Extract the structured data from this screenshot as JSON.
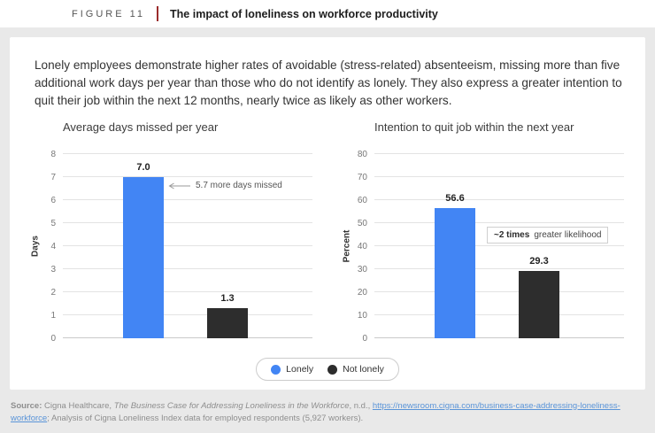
{
  "header": {
    "figure_label": "FIGURE 11",
    "title": "The impact of loneliness on workforce productivity"
  },
  "intro": "Lonely employees demonstrate higher rates of avoidable (stress-related) absenteeism, missing more than five additional work days per year than those who do not identify as lonely. They also express a greater intention to quit their job within the next 12 months, nearly twice as likely as other workers.",
  "legend": [
    {
      "label": "Lonely",
      "color": "#4285f4"
    },
    {
      "label": "Not lonely",
      "color": "#2d2d2d"
    }
  ],
  "chart_data": [
    {
      "type": "bar",
      "title": "Average days missed per year",
      "ylabel": "Days",
      "ylim": [
        0,
        8
      ],
      "yticks": [
        0,
        1,
        2,
        3,
        4,
        5,
        6,
        7,
        8
      ],
      "categories": [
        "Lonely",
        "Not lonely"
      ],
      "values": [
        7.0,
        1.3
      ],
      "value_labels": [
        "7.0",
        "1.3"
      ],
      "bar_colors": [
        "#4285f4",
        "#2d2d2d"
      ],
      "grid": true,
      "legend_position": "bottom-center-shared",
      "annotation": {
        "style": "arrow",
        "bold": "",
        "text": "5.7 more days missed"
      }
    },
    {
      "type": "bar",
      "title": "Intention to quit job within the next year",
      "ylabel": "Percent",
      "ylim": [
        0,
        80
      ],
      "yticks": [
        0,
        10,
        20,
        30,
        40,
        50,
        60,
        70,
        80
      ],
      "categories": [
        "Lonely",
        "Not lonely"
      ],
      "values": [
        56.6,
        29.3
      ],
      "value_labels": [
        "56.6",
        "29.3"
      ],
      "bar_colors": [
        "#4285f4",
        "#2d2d2d"
      ],
      "grid": true,
      "legend_position": "bottom-center-shared",
      "annotation": {
        "style": "box",
        "bold": "~2 times",
        "text": "greater likelihood"
      }
    }
  ],
  "footer": {
    "source_label": "Source:",
    "pre_text": " Cigna Healthcare, ",
    "work_title": "The Business Case for Addressing Loneliness in the Workforce",
    "mid_text": ", n.d., ",
    "link": "https://newsroom.cigna.com/business-case-addressing-loneliness-workforce",
    "post_text": "; Analysis of Cigna Loneliness Index data for employed respondents (5,927 workers)."
  }
}
